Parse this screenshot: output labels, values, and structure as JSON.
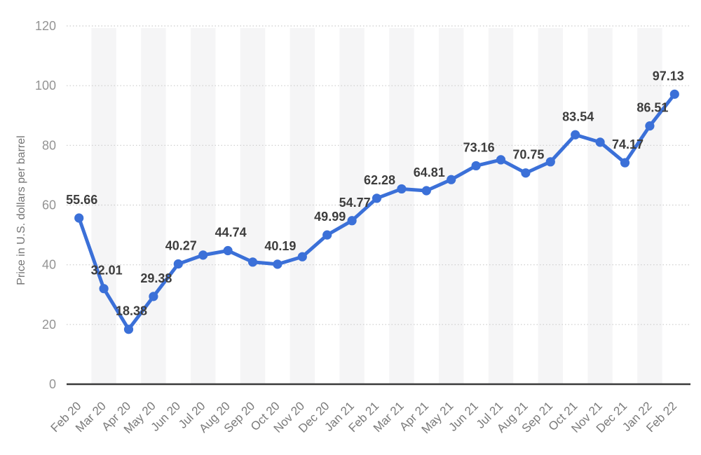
{
  "page": {
    "background": "#ffffff"
  },
  "chart_data": {
    "type": "line",
    "title": "",
    "xlabel": "",
    "ylabel": "Price in U.S. dollars per barrel",
    "ylim": [
      0,
      120
    ],
    "yticks": [
      0,
      20,
      40,
      60,
      80,
      100,
      120
    ],
    "grid": "horizontal-dotted",
    "legend_position": "none",
    "plot_background": "alternating-vertical-stripes",
    "x_tick_rotation": -45,
    "categories": [
      "Feb 20",
      "Mar 20",
      "Apr 20",
      "May 20",
      "Jun 20",
      "Jul 20",
      "Aug 20",
      "Sep 20",
      "Oct 20",
      "Nov 20",
      "Dec 20",
      "Jan 21",
      "Feb 21",
      "Mar 21",
      "Apr 21",
      "May 21",
      "Jun 21",
      "Jul 21",
      "Aug 21",
      "Sep 21",
      "Oct 21",
      "Nov 21",
      "Dec 21",
      "Jan 22",
      "Feb 22"
    ],
    "series": [
      {
        "name": "Price in U.S. dollars per barrel",
        "color": "#3b70d8",
        "values": [
          55.66,
          32.01,
          18.38,
          29.38,
          40.27,
          43.24,
          44.74,
          40.91,
          40.19,
          42.69,
          49.99,
          54.77,
          62.28,
          65.41,
          64.81,
          68.53,
          73.16,
          75.17,
          70.75,
          74.49,
          83.54,
          81.05,
          74.17,
          86.51,
          97.13
        ],
        "data_labels": [
          "55.66",
          "32.01",
          "18.38",
          "29.38",
          "40.27",
          null,
          "44.74",
          null,
          "40.19",
          null,
          "49.99",
          "54.77",
          "62.28",
          null,
          "64.81",
          null,
          "73.16",
          null,
          "70.75",
          null,
          "83.54",
          null,
          "74.17",
          "86.51",
          "97.13"
        ]
      }
    ]
  },
  "colors": {
    "line": "#3b70d8",
    "marker": "#3b70d8",
    "stripe": "#f5f5f6",
    "gridline": "#cccccc",
    "axis_line": "#3a3a3a",
    "data_label": "#3d3d3d",
    "y_tick_label": "#949494",
    "x_tick_label": "#7a7a7a",
    "y_axis_title": "#757575",
    "background": "#ffffff"
  }
}
